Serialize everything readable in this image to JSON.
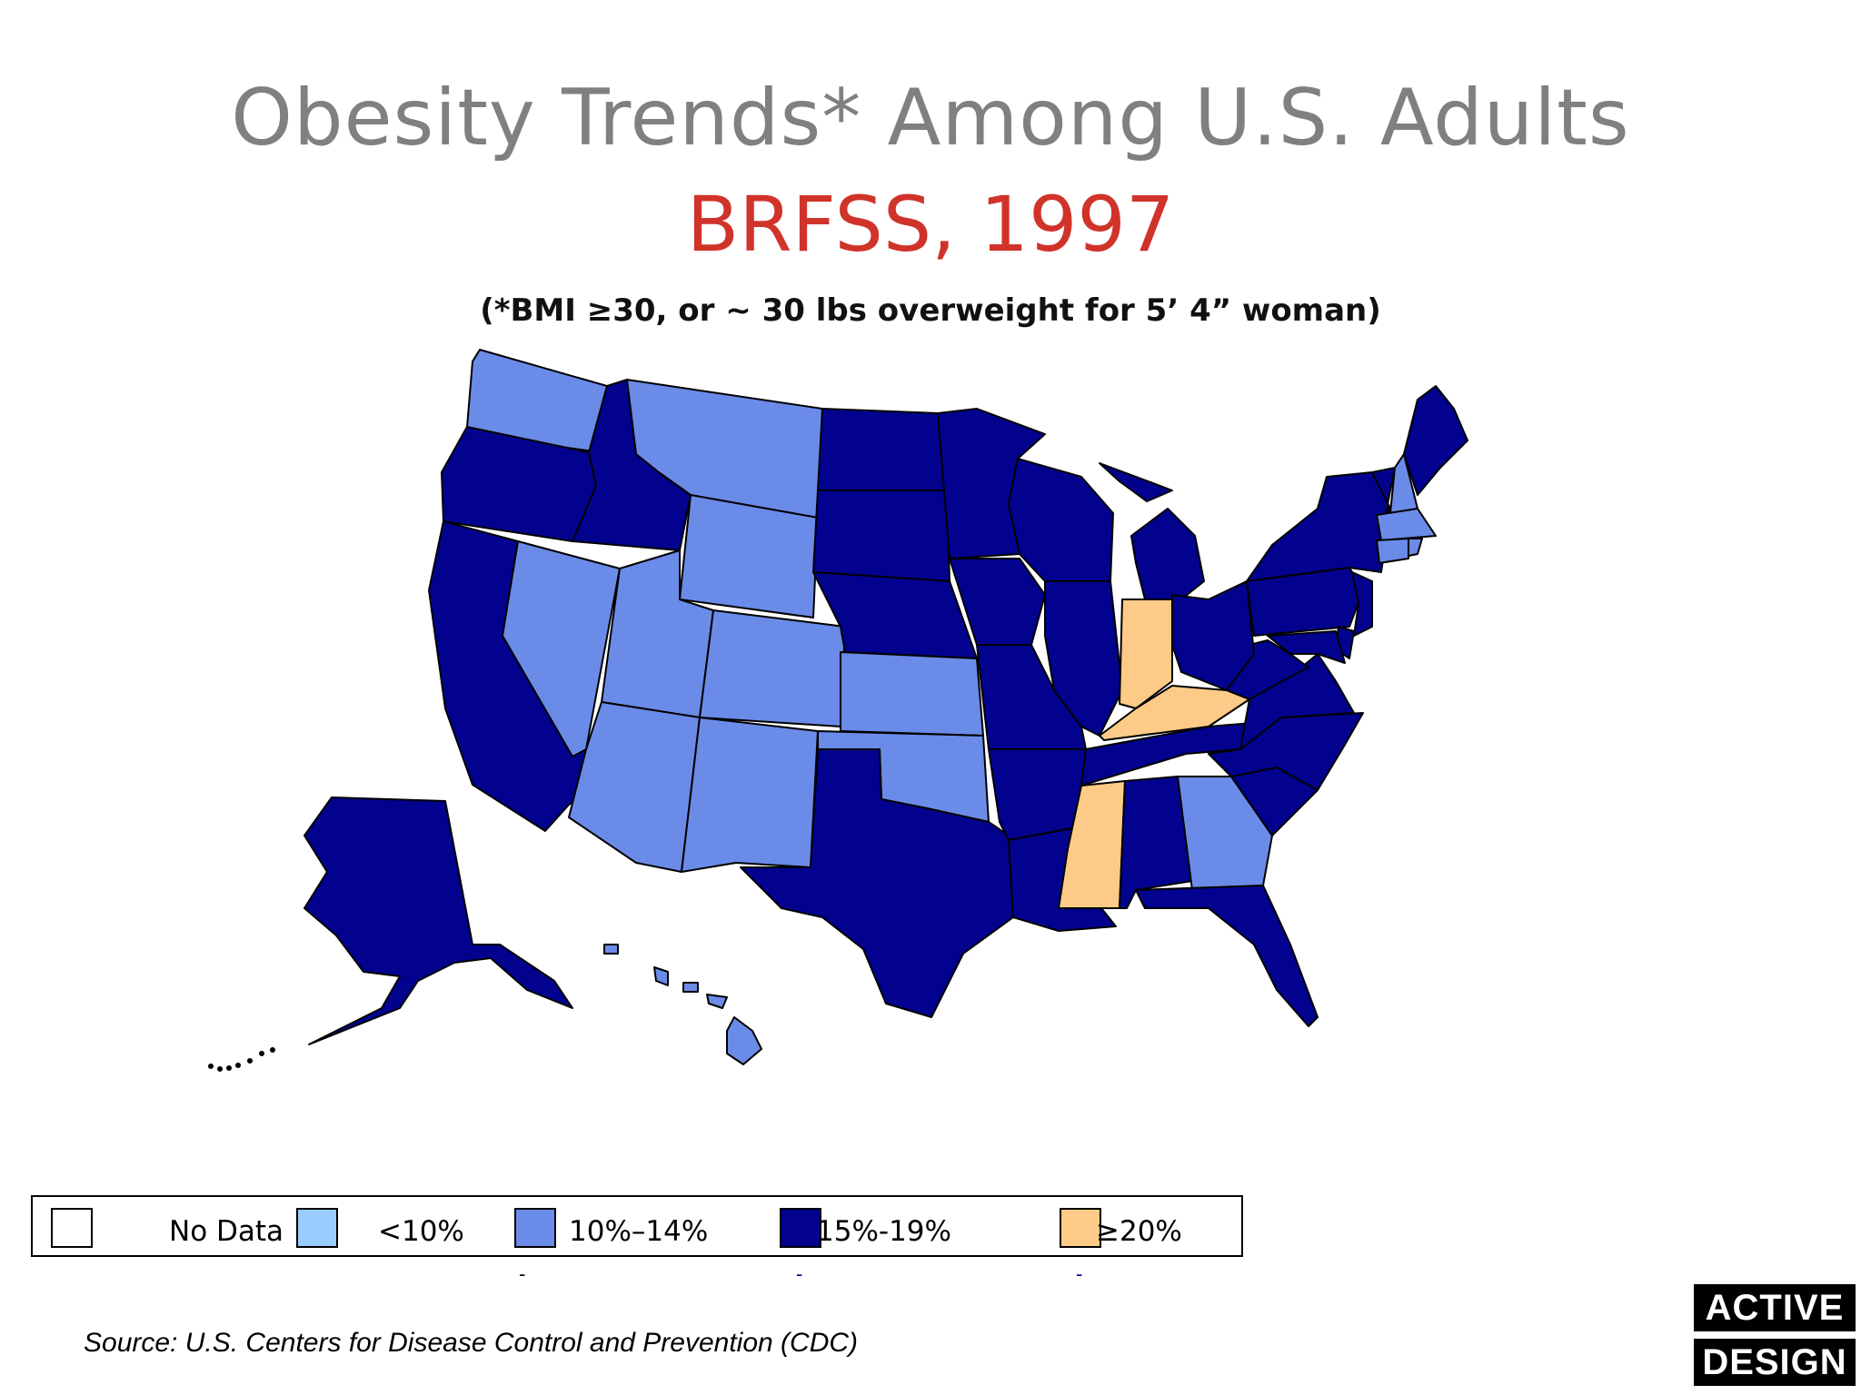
{
  "title": "Obesity Trends* Among U.S. Adults",
  "subtitle": "BRFSS, 1997",
  "note": "(*BMI ≥30, or ~ 30 lbs overweight for 5’ 4” woman)",
  "source": "Source: U.S. Centers for Disease Control and Prevention (CDC)",
  "logo": {
    "line1": "ACTIVE",
    "line2": "DESIGN"
  },
  "colors": {
    "no_data": "#ffffff",
    "lt10": "#99ccff",
    "10_14": "#6b8be8",
    "15_19": "#02028f",
    "20plus": "#fdcb87",
    "border": "#000000",
    "title": "#808080",
    "subtitle": "#d0332a"
  },
  "legend": [
    {
      "key": "no_data",
      "label": "No Data"
    },
    {
      "key": "lt10",
      "label": "<10%"
    },
    {
      "key": "10_14",
      "label": "10%–14%"
    },
    {
      "key": "15_19",
      "label": "15%-19%"
    },
    {
      "key": "20plus",
      "label": "≥20%"
    }
  ],
  "states": [
    {
      "name": "Washington",
      "category": "10_14"
    },
    {
      "name": "Oregon",
      "category": "15_19"
    },
    {
      "name": "California",
      "category": "15_19"
    },
    {
      "name": "Nevada",
      "category": "10_14"
    },
    {
      "name": "Idaho",
      "category": "15_19"
    },
    {
      "name": "Montana",
      "category": "10_14"
    },
    {
      "name": "Wyoming",
      "category": "10_14"
    },
    {
      "name": "Utah",
      "category": "10_14"
    },
    {
      "name": "Arizona",
      "category": "10_14"
    },
    {
      "name": "Colorado",
      "category": "10_14"
    },
    {
      "name": "New Mexico",
      "category": "10_14"
    },
    {
      "name": "North Dakota",
      "category": "15_19"
    },
    {
      "name": "South Dakota",
      "category": "15_19"
    },
    {
      "name": "Nebraska",
      "category": "15_19"
    },
    {
      "name": "Kansas",
      "category": "10_14"
    },
    {
      "name": "Oklahoma",
      "category": "10_14"
    },
    {
      "name": "Texas",
      "category": "15_19"
    },
    {
      "name": "Minnesota",
      "category": "15_19"
    },
    {
      "name": "Iowa",
      "category": "15_19"
    },
    {
      "name": "Missouri",
      "category": "15_19"
    },
    {
      "name": "Arkansas",
      "category": "15_19"
    },
    {
      "name": "Louisiana",
      "category": "15_19"
    },
    {
      "name": "Wisconsin",
      "category": "15_19"
    },
    {
      "name": "Illinois",
      "category": "15_19"
    },
    {
      "name": "Michigan",
      "category": "15_19"
    },
    {
      "name": "Indiana",
      "category": "20plus"
    },
    {
      "name": "Kentucky",
      "category": "20plus"
    },
    {
      "name": "Tennessee",
      "category": "15_19"
    },
    {
      "name": "Mississippi",
      "category": "20plus"
    },
    {
      "name": "Alabama",
      "category": "15_19"
    },
    {
      "name": "Georgia",
      "category": "10_14"
    },
    {
      "name": "Florida",
      "category": "15_19"
    },
    {
      "name": "South Carolina",
      "category": "15_19"
    },
    {
      "name": "North Carolina",
      "category": "15_19"
    },
    {
      "name": "Virginia",
      "category": "15_19"
    },
    {
      "name": "West Virginia",
      "category": "15_19"
    },
    {
      "name": "Ohio",
      "category": "15_19"
    },
    {
      "name": "Pennsylvania",
      "category": "15_19"
    },
    {
      "name": "New York",
      "category": "15_19"
    },
    {
      "name": "Vermont",
      "category": "15_19"
    },
    {
      "name": "New Hampshire",
      "category": "10_14"
    },
    {
      "name": "Maine",
      "category": "15_19"
    },
    {
      "name": "Massachusetts",
      "category": "10_14"
    },
    {
      "name": "Connecticut",
      "category": "10_14"
    },
    {
      "name": "Rhode Island",
      "category": "10_14"
    },
    {
      "name": "New Jersey",
      "category": "15_19"
    },
    {
      "name": "Delaware",
      "category": "15_19"
    },
    {
      "name": "Maryland",
      "category": "15_19"
    },
    {
      "name": "Alaska",
      "category": "15_19"
    },
    {
      "name": "Hawaii",
      "category": "10_14"
    }
  ]
}
